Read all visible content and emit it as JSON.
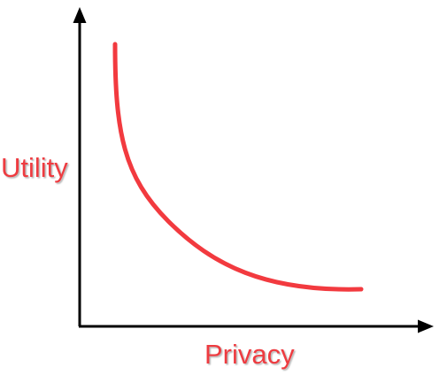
{
  "diagram": {
    "x_axis_label": "Privacy",
    "y_axis_label": "Utility",
    "curve_shape": "decreasing convex (inverse relationship)"
  },
  "colors": {
    "curve": "#f23a3f",
    "label": "#ee3a40",
    "label_shadow": "#b8b8b8",
    "axes": "#000000",
    "background": "#ffffff"
  }
}
